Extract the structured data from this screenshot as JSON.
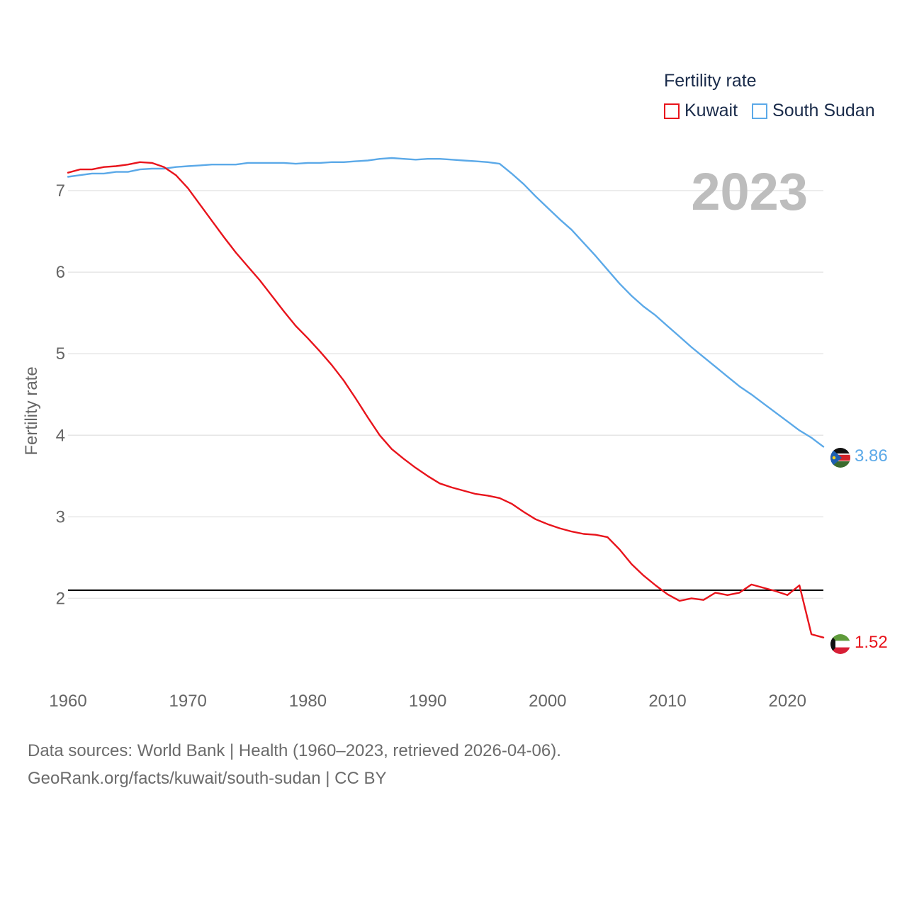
{
  "legend": {
    "title": "Fertility rate",
    "items": [
      {
        "label": "Kuwait",
        "color": "#e8141c"
      },
      {
        "label": "South Sudan",
        "color": "#5ba9e8"
      }
    ]
  },
  "current_year": "2023",
  "footer": {
    "line1": "Data sources: World Bank | Health (1960–2023, retrieved 2026-04-06).",
    "line2": "GeoRank.org/facts/kuwait/south-sudan | CC BY"
  },
  "end_labels": {
    "kuwait": "1.52",
    "south_sudan": "3.86"
  },
  "flags": {
    "kuwait": "kuwait-flag-icon",
    "south_sudan": "south-sudan-flag-icon"
  },
  "chart_data": {
    "type": "line",
    "title": "Fertility rate",
    "xlabel": "",
    "ylabel": "Fertility rate",
    "xlim": [
      1960,
      2023
    ],
    "ylim": [
      1.1,
      7.6
    ],
    "x_ticks": [
      1960,
      1970,
      1980,
      1990,
      2000,
      2010,
      2020
    ],
    "y_ticks": [
      2,
      3,
      4,
      5,
      6,
      7
    ],
    "reference_line": 2.1,
    "x": [
      1960,
      1961,
      1962,
      1963,
      1964,
      1965,
      1966,
      1967,
      1968,
      1969,
      1970,
      1971,
      1972,
      1973,
      1974,
      1975,
      1976,
      1977,
      1978,
      1979,
      1980,
      1981,
      1982,
      1983,
      1984,
      1985,
      1986,
      1987,
      1988,
      1989,
      1990,
      1991,
      1992,
      1993,
      1994,
      1995,
      1996,
      1997,
      1998,
      1999,
      2000,
      2001,
      2002,
      2003,
      2004,
      2005,
      2006,
      2007,
      2008,
      2009,
      2010,
      2011,
      2012,
      2013,
      2014,
      2015,
      2016,
      2017,
      2018,
      2019,
      2020,
      2021,
      2022,
      2023
    ],
    "series": [
      {
        "name": "Kuwait",
        "color": "#e8141c",
        "values": [
          7.22,
          7.26,
          7.26,
          7.29,
          7.3,
          7.32,
          7.35,
          7.34,
          7.29,
          7.19,
          7.03,
          6.83,
          6.63,
          6.43,
          6.24,
          6.07,
          5.9,
          5.71,
          5.52,
          5.34,
          5.19,
          5.03,
          4.86,
          4.67,
          4.45,
          4.22,
          4.0,
          3.83,
          3.71,
          3.6,
          3.5,
          3.41,
          3.36,
          3.32,
          3.28,
          3.26,
          3.23,
          3.16,
          3.06,
          2.97,
          2.91,
          2.86,
          2.82,
          2.79,
          2.78,
          2.75,
          2.6,
          2.42,
          2.28,
          2.16,
          2.05,
          1.97,
          2.0,
          1.98,
          2.07,
          2.04,
          2.07,
          2.17,
          2.13,
          2.09,
          2.04,
          2.16,
          1.56,
          1.52
        ]
      },
      {
        "name": "South Sudan",
        "color": "#5ba9e8",
        "values": [
          7.17,
          7.19,
          7.21,
          7.21,
          7.23,
          7.23,
          7.26,
          7.27,
          7.27,
          7.29,
          7.3,
          7.31,
          7.32,
          7.32,
          7.32,
          7.34,
          7.34,
          7.34,
          7.34,
          7.33,
          7.34,
          7.34,
          7.35,
          7.35,
          7.36,
          7.37,
          7.39,
          7.4,
          7.39,
          7.38,
          7.39,
          7.39,
          7.38,
          7.37,
          7.36,
          7.35,
          7.33,
          7.21,
          7.08,
          6.93,
          6.79,
          6.65,
          6.52,
          6.36,
          6.2,
          6.03,
          5.86,
          5.71,
          5.58,
          5.47,
          5.34,
          5.21,
          5.08,
          4.96,
          4.84,
          4.72,
          4.6,
          4.5,
          4.39,
          4.28,
          4.17,
          4.06,
          3.97,
          3.86
        ]
      }
    ]
  }
}
